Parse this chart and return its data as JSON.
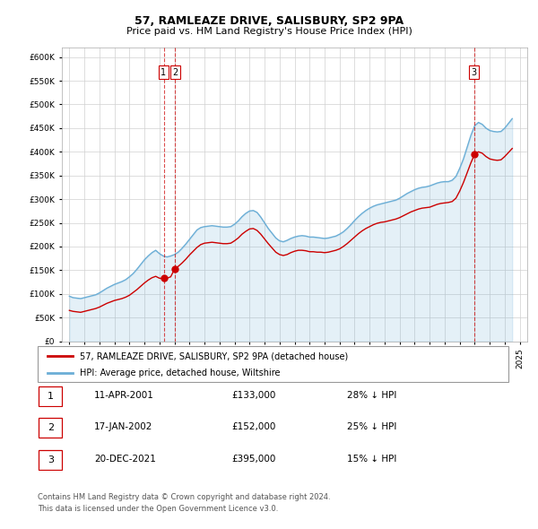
{
  "title": "57, RAMLEAZE DRIVE, SALISBURY, SP2 9PA",
  "subtitle": "Price paid vs. HM Land Registry's House Price Index (HPI)",
  "hpi_label": "HPI: Average price, detached house, Wiltshire",
  "property_label": "57, RAMLEAZE DRIVE, SALISBURY, SP2 9PA (detached house)",
  "footer_line1": "Contains HM Land Registry data © Crown copyright and database right 2024.",
  "footer_line2": "This data is licensed under the Open Government Licence v3.0.",
  "transactions": [
    {
      "num": 1,
      "date": "11-APR-2001",
      "price": 133000,
      "hpi_diff": "28% ↓ HPI",
      "x": 2001.28
    },
    {
      "num": 2,
      "date": "17-JAN-2002",
      "price": 152000,
      "hpi_diff": "25% ↓ HPI",
      "x": 2002.04
    },
    {
      "num": 3,
      "date": "20-DEC-2021",
      "price": 395000,
      "hpi_diff": "15% ↓ HPI",
      "x": 2021.96
    }
  ],
  "hpi_color": "#6baed6",
  "property_color": "#cc0000",
  "vline_color": "#cc0000",
  "marker_color": "#cc0000",
  "ylim": [
    0,
    620000
  ],
  "yticks": [
    0,
    50000,
    100000,
    150000,
    200000,
    250000,
    300000,
    350000,
    400000,
    450000,
    500000,
    550000,
    600000
  ],
  "xlim": [
    1994.5,
    2025.5
  ],
  "xticks": [
    1995,
    1996,
    1997,
    1998,
    1999,
    2000,
    2001,
    2002,
    2003,
    2004,
    2005,
    2006,
    2007,
    2008,
    2009,
    2010,
    2011,
    2012,
    2013,
    2014,
    2015,
    2016,
    2017,
    2018,
    2019,
    2020,
    2021,
    2022,
    2023,
    2024,
    2025
  ],
  "hpi_x": [
    1995.0,
    1995.25,
    1995.5,
    1995.75,
    1996.0,
    1996.25,
    1996.5,
    1996.75,
    1997.0,
    1997.25,
    1997.5,
    1997.75,
    1998.0,
    1998.25,
    1998.5,
    1998.75,
    1999.0,
    1999.25,
    1999.5,
    1999.75,
    2000.0,
    2000.25,
    2000.5,
    2000.75,
    2001.0,
    2001.25,
    2001.5,
    2001.75,
    2002.0,
    2002.25,
    2002.5,
    2002.75,
    2003.0,
    2003.25,
    2003.5,
    2003.75,
    2004.0,
    2004.25,
    2004.5,
    2004.75,
    2005.0,
    2005.25,
    2005.5,
    2005.75,
    2006.0,
    2006.25,
    2006.5,
    2006.75,
    2007.0,
    2007.25,
    2007.5,
    2007.75,
    2008.0,
    2008.25,
    2008.5,
    2008.75,
    2009.0,
    2009.25,
    2009.5,
    2009.75,
    2010.0,
    2010.25,
    2010.5,
    2010.75,
    2011.0,
    2011.25,
    2011.5,
    2011.75,
    2012.0,
    2012.25,
    2012.5,
    2012.75,
    2013.0,
    2013.25,
    2013.5,
    2013.75,
    2014.0,
    2014.25,
    2014.5,
    2014.75,
    2015.0,
    2015.25,
    2015.5,
    2015.75,
    2016.0,
    2016.25,
    2016.5,
    2016.75,
    2017.0,
    2017.25,
    2017.5,
    2017.75,
    2018.0,
    2018.25,
    2018.5,
    2018.75,
    2019.0,
    2019.25,
    2019.5,
    2019.75,
    2020.0,
    2020.25,
    2020.5,
    2020.75,
    2021.0,
    2021.25,
    2021.5,
    2021.75,
    2022.0,
    2022.25,
    2022.5,
    2022.75,
    2023.0,
    2023.25,
    2023.5,
    2023.75,
    2024.0,
    2024.5
  ],
  "hpi_y": [
    95000,
    92000,
    91000,
    90000,
    92000,
    94000,
    96000,
    98000,
    102000,
    107000,
    112000,
    116000,
    120000,
    123000,
    126000,
    130000,
    136000,
    143000,
    152000,
    162000,
    172000,
    180000,
    187000,
    192000,
    185000,
    180000,
    178000,
    180000,
    183000,
    188000,
    196000,
    205000,
    215000,
    225000,
    235000,
    240000,
    242000,
    243000,
    244000,
    243000,
    242000,
    241000,
    241000,
    242000,
    247000,
    254000,
    263000,
    270000,
    275000,
    276000,
    272000,
    262000,
    250000,
    238000,
    228000,
    218000,
    212000,
    210000,
    213000,
    217000,
    220000,
    222000,
    223000,
    222000,
    220000,
    220000,
    219000,
    218000,
    217000,
    218000,
    220000,
    222000,
    226000,
    231000,
    238000,
    246000,
    255000,
    263000,
    270000,
    276000,
    281000,
    285000,
    288000,
    290000,
    292000,
    294000,
    296000,
    298000,
    302000,
    307000,
    312000,
    316000,
    320000,
    323000,
    325000,
    326000,
    328000,
    331000,
    334000,
    336000,
    337000,
    337000,
    340000,
    348000,
    365000,
    385000,
    410000,
    435000,
    455000,
    462000,
    458000,
    450000,
    445000,
    443000,
    442000,
    443000,
    450000,
    470000
  ],
  "property_x": [
    1995.0,
    1995.25,
    1995.5,
    1995.75,
    1996.0,
    1996.25,
    1996.5,
    1996.75,
    1997.0,
    1997.25,
    1997.5,
    1997.75,
    1998.0,
    1998.25,
    1998.5,
    1998.75,
    1999.0,
    1999.25,
    1999.5,
    1999.75,
    2000.0,
    2000.25,
    2000.5,
    2000.75,
    2001.0,
    2001.25,
    2001.5,
    2001.75,
    2002.0,
    2002.25,
    2002.5,
    2002.75,
    2003.0,
    2003.25,
    2003.5,
    2003.75,
    2004.0,
    2004.25,
    2004.5,
    2004.75,
    2005.0,
    2005.25,
    2005.5,
    2005.75,
    2006.0,
    2006.25,
    2006.5,
    2006.75,
    2007.0,
    2007.25,
    2007.5,
    2007.75,
    2008.0,
    2008.25,
    2008.5,
    2008.75,
    2009.0,
    2009.25,
    2009.5,
    2009.75,
    2010.0,
    2010.25,
    2010.5,
    2010.75,
    2011.0,
    2011.25,
    2011.5,
    2011.75,
    2012.0,
    2012.25,
    2012.5,
    2012.75,
    2013.0,
    2013.25,
    2013.5,
    2013.75,
    2014.0,
    2014.25,
    2014.5,
    2014.75,
    2015.0,
    2015.25,
    2015.5,
    2015.75,
    2016.0,
    2016.25,
    2016.5,
    2016.75,
    2017.0,
    2017.25,
    2017.5,
    2017.75,
    2018.0,
    2018.25,
    2018.5,
    2018.75,
    2019.0,
    2019.25,
    2019.5,
    2019.75,
    2020.0,
    2020.25,
    2020.5,
    2020.75,
    2021.0,
    2021.25,
    2021.5,
    2021.75,
    2022.0,
    2022.25,
    2022.5,
    2022.75,
    2023.0,
    2023.25,
    2023.5,
    2023.75,
    2024.0,
    2024.5
  ],
  "property_y": [
    65000,
    63000,
    62000,
    61000,
    63000,
    65000,
    67000,
    69000,
    72000,
    76000,
    80000,
    83000,
    86000,
    88000,
    90000,
    93000,
    97000,
    103000,
    109000,
    116000,
    123000,
    129000,
    134000,
    137000,
    133000,
    132000,
    133000,
    136000,
    152000,
    158000,
    165000,
    173000,
    182000,
    190000,
    198000,
    204000,
    207000,
    208000,
    209000,
    208000,
    207000,
    206000,
    206000,
    207000,
    212000,
    218000,
    226000,
    232000,
    237000,
    238000,
    234000,
    226000,
    216000,
    206000,
    197000,
    188000,
    183000,
    181000,
    183000,
    187000,
    190000,
    192000,
    192000,
    191000,
    189000,
    189000,
    188000,
    188000,
    187000,
    188000,
    190000,
    192000,
    195000,
    200000,
    206000,
    213000,
    220000,
    227000,
    233000,
    238000,
    242000,
    246000,
    249000,
    251000,
    252000,
    254000,
    256000,
    258000,
    261000,
    265000,
    269000,
    273000,
    276000,
    279000,
    281000,
    282000,
    283000,
    286000,
    289000,
    291000,
    292000,
    293000,
    295000,
    302000,
    317000,
    335000,
    356000,
    377000,
    395000,
    400000,
    397000,
    390000,
    385000,
    383000,
    382000,
    383000,
    390000,
    407000
  ]
}
